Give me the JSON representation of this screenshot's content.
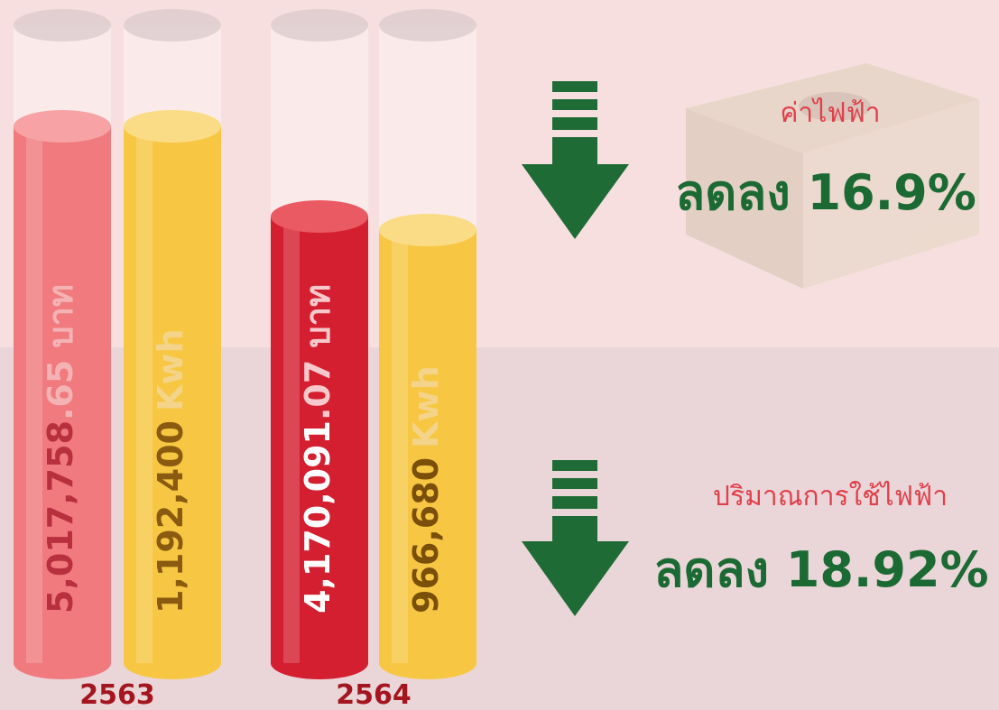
{
  "groups": [
    {
      "year": "2563",
      "bars": [
        {
          "main": "5,017,758",
          "suffix": ".65 บาท"
        },
        {
          "main": "1,192,400",
          "suffix": "Kwh"
        }
      ]
    },
    {
      "year": "2564",
      "bars": [
        {
          "main": "4,170,091",
          "suffix": ".07 บาท"
        },
        {
          "main": "966,680",
          "suffix": "Kwh"
        }
      ]
    }
  ],
  "stats": [
    {
      "label": "ค่าไฟฟ้า",
      "value": "ลดลง 16.9%"
    },
    {
      "label": "ปริมาณการใช้ไฟฟ้า",
      "value": "ลดลง 18.92%"
    }
  ]
}
